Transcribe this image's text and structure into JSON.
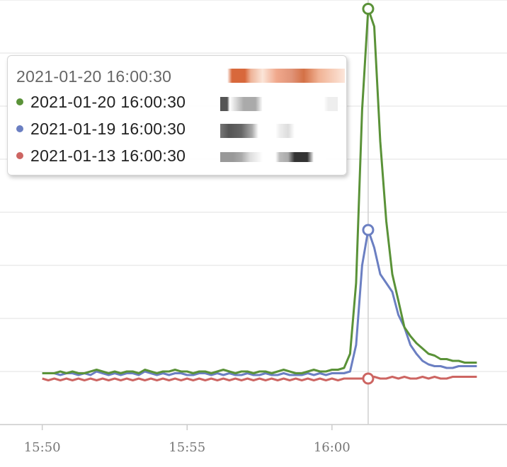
{
  "tooltip": {
    "header": "2021-01-20 16:00:30",
    "rows": [
      {
        "label": "2021-01-20 16:00:30",
        "color": "#5a9238"
      },
      {
        "label": "2021-01-19 16:00:30",
        "color": "#6b7fc2"
      },
      {
        "label": "2021-01-13 16:00:30",
        "color": "#cd6562"
      }
    ]
  },
  "chart_data": {
    "type": "line",
    "xlabel": "",
    "ylabel": "",
    "x_ticks": [
      "15:50",
      "15:55",
      "16:00"
    ],
    "grid": true,
    "series": [
      {
        "color": "#5a9238",
        "values": [
          [
            0,
            2.9
          ],
          [
            5,
            2.9
          ],
          [
            10,
            2.9
          ],
          [
            15,
            3.0
          ],
          [
            20,
            2.9
          ],
          [
            25,
            3.0
          ],
          [
            30,
            2.9
          ],
          [
            35,
            2.9
          ],
          [
            40,
            3.0
          ],
          [
            45,
            3.1
          ],
          [
            50,
            3.0
          ],
          [
            55,
            2.9
          ],
          [
            60,
            3.0
          ],
          [
            65,
            2.9
          ],
          [
            70,
            3.0
          ],
          [
            75,
            3.0
          ],
          [
            80,
            2.9
          ],
          [
            85,
            3.1
          ],
          [
            90,
            3.0
          ],
          [
            95,
            2.9
          ],
          [
            100,
            3.0
          ],
          [
            105,
            3.0
          ],
          [
            110,
            3.1
          ],
          [
            115,
            3.0
          ],
          [
            120,
            3.0
          ],
          [
            125,
            2.9
          ],
          [
            130,
            3.0
          ],
          [
            135,
            3.0
          ],
          [
            140,
            2.9
          ],
          [
            145,
            3.0
          ],
          [
            150,
            3.1
          ],
          [
            155,
            3.0
          ],
          [
            160,
            2.9
          ],
          [
            165,
            3.0
          ],
          [
            170,
            3.0
          ],
          [
            175,
            2.9
          ],
          [
            180,
            3.0
          ],
          [
            185,
            3.0
          ],
          [
            190,
            2.9
          ],
          [
            195,
            3.0
          ],
          [
            200,
            3.1
          ],
          [
            205,
            3.0
          ],
          [
            210,
            2.9
          ],
          [
            215,
            2.9
          ],
          [
            220,
            3.0
          ],
          [
            225,
            3.1
          ],
          [
            230,
            3.0
          ],
          [
            235,
            3.0
          ],
          [
            240,
            3.1
          ],
          [
            245,
            3.1
          ],
          [
            250,
            3.2
          ],
          [
            255,
            4.0
          ],
          [
            260,
            8.0
          ],
          [
            265,
            17.8
          ],
          [
            270,
            23.5
          ],
          [
            275,
            22.5
          ],
          [
            280,
            16.0
          ],
          [
            285,
            11.5
          ],
          [
            290,
            8.5
          ],
          [
            295,
            7.0
          ],
          [
            300,
            5.5
          ],
          [
            305,
            5.0
          ],
          [
            310,
            4.6
          ],
          [
            315,
            4.3
          ],
          [
            320,
            4.0
          ],
          [
            325,
            3.9
          ],
          [
            330,
            3.7
          ],
          [
            335,
            3.7
          ],
          [
            340,
            3.6
          ],
          [
            345,
            3.6
          ],
          [
            350,
            3.5
          ],
          [
            355,
            3.5
          ],
          [
            360,
            3.5
          ]
        ]
      },
      {
        "color": "#6b7fc2",
        "values": [
          [
            0,
            2.9
          ],
          [
            5,
            2.9
          ],
          [
            10,
            2.9
          ],
          [
            15,
            2.8
          ],
          [
            20,
            2.9
          ],
          [
            25,
            2.9
          ],
          [
            30,
            2.8
          ],
          [
            35,
            2.9
          ],
          [
            40,
            2.8
          ],
          [
            45,
            3.0
          ],
          [
            50,
            2.9
          ],
          [
            55,
            2.8
          ],
          [
            60,
            2.9
          ],
          [
            65,
            2.8
          ],
          [
            70,
            2.9
          ],
          [
            75,
            2.9
          ],
          [
            80,
            2.8
          ],
          [
            85,
            3.0
          ],
          [
            90,
            2.9
          ],
          [
            95,
            2.8
          ],
          [
            100,
            2.9
          ],
          [
            105,
            2.8
          ],
          [
            110,
            2.9
          ],
          [
            115,
            2.9
          ],
          [
            120,
            2.8
          ],
          [
            125,
            2.8
          ],
          [
            130,
            2.9
          ],
          [
            135,
            2.9
          ],
          [
            140,
            2.8
          ],
          [
            145,
            2.9
          ],
          [
            150,
            2.8
          ],
          [
            155,
            2.9
          ],
          [
            160,
            2.8
          ],
          [
            165,
            2.8
          ],
          [
            170,
            2.9
          ],
          [
            175,
            2.8
          ],
          [
            180,
            2.8
          ],
          [
            185,
            2.9
          ],
          [
            190,
            2.8
          ],
          [
            195,
            2.8
          ],
          [
            200,
            2.9
          ],
          [
            205,
            2.8
          ],
          [
            210,
            2.8
          ],
          [
            215,
            2.8
          ],
          [
            220,
            2.9
          ],
          [
            225,
            2.8
          ],
          [
            230,
            2.9
          ],
          [
            235,
            2.8
          ],
          [
            240,
            2.9
          ],
          [
            245,
            2.9
          ],
          [
            250,
            2.9
          ],
          [
            255,
            3.0
          ],
          [
            260,
            4.5
          ],
          [
            265,
            9.0
          ],
          [
            270,
            11.0
          ],
          [
            275,
            10.0
          ],
          [
            280,
            8.5
          ],
          [
            285,
            8.0
          ],
          [
            290,
            7.5
          ],
          [
            295,
            6.2
          ],
          [
            300,
            5.5
          ],
          [
            305,
            4.5
          ],
          [
            310,
            4.0
          ],
          [
            315,
            3.6
          ],
          [
            320,
            3.4
          ],
          [
            325,
            3.3
          ],
          [
            330,
            3.3
          ],
          [
            335,
            3.2
          ],
          [
            340,
            3.2
          ],
          [
            345,
            3.3
          ],
          [
            350,
            3.3
          ],
          [
            355,
            3.3
          ],
          [
            360,
            3.3
          ]
        ]
      },
      {
        "color": "#cd6562",
        "values": [
          [
            0,
            2.6
          ],
          [
            5,
            2.5
          ],
          [
            10,
            2.6
          ],
          [
            15,
            2.5
          ],
          [
            20,
            2.6
          ],
          [
            25,
            2.5
          ],
          [
            30,
            2.6
          ],
          [
            35,
            2.5
          ],
          [
            40,
            2.6
          ],
          [
            45,
            2.5
          ],
          [
            50,
            2.6
          ],
          [
            55,
            2.5
          ],
          [
            60,
            2.6
          ],
          [
            65,
            2.5
          ],
          [
            70,
            2.6
          ],
          [
            75,
            2.5
          ],
          [
            80,
            2.6
          ],
          [
            85,
            2.5
          ],
          [
            90,
            2.6
          ],
          [
            95,
            2.5
          ],
          [
            100,
            2.6
          ],
          [
            105,
            2.5
          ],
          [
            110,
            2.6
          ],
          [
            115,
            2.5
          ],
          [
            120,
            2.6
          ],
          [
            125,
            2.5
          ],
          [
            130,
            2.6
          ],
          [
            135,
            2.5
          ],
          [
            140,
            2.6
          ],
          [
            145,
            2.5
          ],
          [
            150,
            2.6
          ],
          [
            155,
            2.5
          ],
          [
            160,
            2.6
          ],
          [
            165,
            2.5
          ],
          [
            170,
            2.6
          ],
          [
            175,
            2.5
          ],
          [
            180,
            2.6
          ],
          [
            185,
            2.5
          ],
          [
            190,
            2.6
          ],
          [
            195,
            2.5
          ],
          [
            200,
            2.6
          ],
          [
            205,
            2.5
          ],
          [
            210,
            2.6
          ],
          [
            215,
            2.5
          ],
          [
            220,
            2.6
          ],
          [
            225,
            2.5
          ],
          [
            230,
            2.6
          ],
          [
            235,
            2.5
          ],
          [
            240,
            2.6
          ],
          [
            245,
            2.5
          ],
          [
            250,
            2.6
          ],
          [
            255,
            2.6
          ],
          [
            260,
            2.6
          ],
          [
            265,
            2.6
          ],
          [
            270,
            2.6
          ],
          [
            275,
            2.7
          ],
          [
            280,
            2.6
          ],
          [
            285,
            2.6
          ],
          [
            290,
            2.7
          ],
          [
            295,
            2.6
          ],
          [
            300,
            2.7
          ],
          [
            305,
            2.6
          ],
          [
            310,
            2.6
          ],
          [
            315,
            2.7
          ],
          [
            320,
            2.6
          ],
          [
            325,
            2.7
          ],
          [
            330,
            2.6
          ],
          [
            335,
            2.6
          ],
          [
            340,
            2.7
          ],
          [
            345,
            2.7
          ],
          [
            350,
            2.7
          ],
          [
            355,
            2.7
          ],
          [
            360,
            2.7
          ]
        ]
      }
    ],
    "highlight_x": 270
  }
}
